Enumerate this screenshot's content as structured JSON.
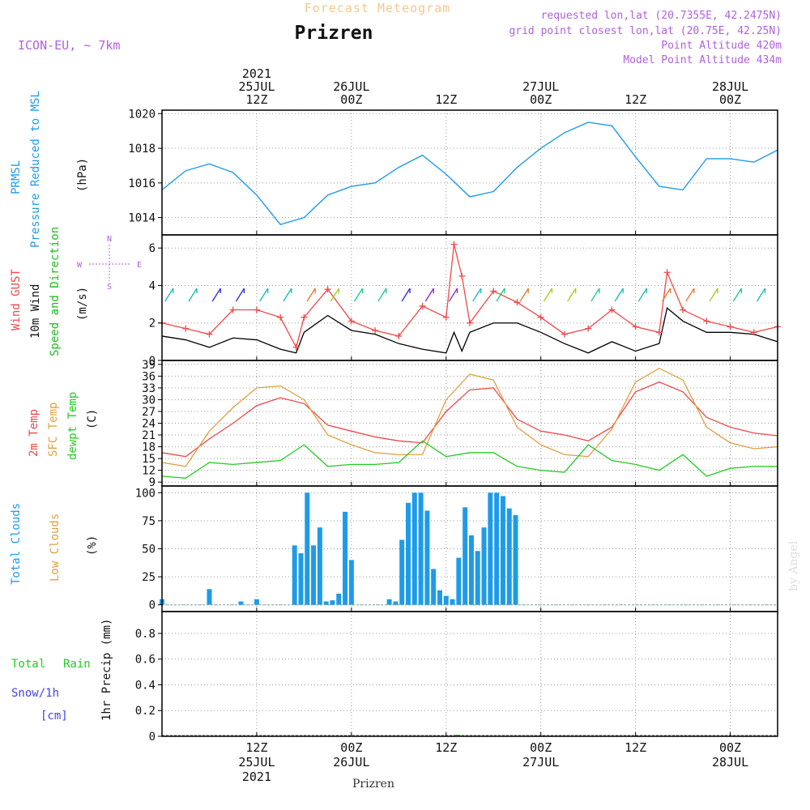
{
  "header": {
    "app_title": "Forecast Meteogram",
    "location": "Prizren",
    "model": "ICON-EU, ~ 7km",
    "requested": "requested lon,lat (20.7355E, 42.2475N)",
    "grid_point": "grid point closest lon,lat (20.75E, 42.25N)",
    "point_altitude": "Point Altitude 420m",
    "model_altitude": "Model Point Altitude 434m",
    "footer_location": "Prizren",
    "watermark": "by Angel"
  },
  "colors": {
    "pressure": "#1e9be8",
    "gust": "#f04848",
    "wind": "#000000",
    "direction": "#22bb22",
    "temp2m": "#f04848",
    "sfc": "#e0a040",
    "dewpt": "#22cc22",
    "clouds_total": "#1e9be8",
    "clouds_low": "#e0a040",
    "rain": "#22cc22",
    "snow": "#4444ee",
    "annot": "#b060e0",
    "title_top": "#f0c890"
  },
  "time_axis": {
    "ticks": [
      {
        "hour": 12,
        "top": [
          "2021",
          "25JUL",
          "12Z"
        ],
        "bottom": [
          "12Z",
          "25JUL",
          "2021"
        ]
      },
      {
        "hour": 24,
        "top": [
          "26JUL",
          "00Z"
        ],
        "bottom": [
          "00Z",
          "26JUL"
        ]
      },
      {
        "hour": 36,
        "top": [
          "12Z"
        ],
        "bottom": [
          "12Z"
        ]
      },
      {
        "hour": 48,
        "top": [
          "27JUL",
          "00Z"
        ],
        "bottom": [
          "00Z",
          "27JUL"
        ]
      },
      {
        "hour": 60,
        "top": [
          "12Z"
        ],
        "bottom": [
          "12Z"
        ]
      },
      {
        "hour": 72,
        "top": [
          "28JUL",
          "00Z"
        ],
        "bottom": [
          "00Z",
          "28JUL"
        ]
      }
    ]
  },
  "panels": {
    "pressure": {
      "labels": [
        "PRMSL",
        "Pressure Reduced to MSL"
      ],
      "unit": "(hPa)",
      "ticks": [
        "1014",
        "1016",
        "1018",
        "1020"
      ]
    },
    "wind": {
      "labels": [
        "Wind GUST",
        "10m Wind",
        "Speed and Direction"
      ],
      "unit": "(m/s)",
      "ticks": [
        "0",
        "2",
        "4",
        "6"
      ],
      "compass": {
        "n": "N",
        "s": "S",
        "w": "W",
        "e": "E"
      }
    },
    "temp": {
      "labels": [
        "2m Temp",
        "SFC Temp",
        "dewpt Temp"
      ],
      "unit": "(C)",
      "ticks": [
        "9",
        "12",
        "15",
        "18",
        "21",
        "24",
        "27",
        "30",
        "33",
        "36",
        "39"
      ]
    },
    "clouds": {
      "labels": [
        "Total Clouds",
        "Low Clouds"
      ],
      "unit": "(%)",
      "ticks": [
        "0",
        "25",
        "50",
        "75",
        "100"
      ]
    },
    "precip": {
      "labels": [
        "Total",
        "Rain",
        "Snow/1h",
        "[cm]"
      ],
      "unit": "1hr Precip (mm)",
      "ticks": [
        "0",
        "0.2",
        "0.4",
        "0.6",
        "0.8"
      ]
    }
  },
  "chart_data": [
    {
      "type": "line",
      "title": "PRMSL Pressure Reduced to MSL",
      "ylabel": "(hPa)",
      "ylim": [
        1013,
        1020.2
      ],
      "x_hours": [
        0,
        3,
        6,
        9,
        12,
        15,
        18,
        21,
        24,
        27,
        30,
        33,
        36,
        39,
        42,
        45,
        48,
        51,
        54,
        57,
        60,
        63,
        66,
        69,
        72,
        75,
        78
      ],
      "series": [
        {
          "name": "PRMSL",
          "values": [
            1015.6,
            1016.7,
            1017.1,
            1016.6,
            1015.3,
            1013.6,
            1014.0,
            1015.3,
            1015.8,
            1016.0,
            1016.9,
            1017.6,
            1016.5,
            1015.2,
            1015.5,
            1016.9,
            1018.0,
            1018.9,
            1019.5,
            1019.3,
            1017.5,
            1015.8,
            1015.6,
            1017.4,
            1017.4,
            1017.2,
            1017.9
          ]
        }
      ]
    },
    {
      "type": "line",
      "title": "Wind GUST / 10m Wind Speed and Direction",
      "ylabel": "(m/s)",
      "ylim": [
        0,
        6.7
      ],
      "x_hours": [
        0,
        3,
        6,
        9,
        12,
        15,
        17,
        18,
        21,
        24,
        27,
        30,
        33,
        36,
        37,
        38,
        39,
        42,
        45,
        48,
        51,
        54,
        57,
        60,
        63,
        64,
        66,
        69,
        72,
        75,
        78
      ],
      "series": [
        {
          "name": "Wind GUST",
          "values": [
            2.0,
            1.7,
            1.4,
            2.7,
            2.7,
            2.3,
            0.7,
            2.3,
            3.8,
            2.1,
            1.6,
            1.3,
            2.9,
            2.3,
            6.2,
            4.5,
            2.0,
            3.7,
            3.1,
            2.3,
            1.4,
            1.7,
            2.7,
            1.8,
            1.5,
            4.7,
            2.7,
            2.1,
            1.8,
            1.5,
            1.8
          ]
        },
        {
          "name": "10m Wind",
          "values": [
            1.3,
            1.1,
            0.7,
            1.2,
            1.1,
            0.6,
            0.4,
            1.5,
            2.4,
            1.6,
            1.4,
            0.9,
            0.6,
            0.4,
            1.5,
            0.5,
            1.5,
            2.0,
            2.0,
            1.5,
            0.9,
            0.4,
            1.0,
            0.5,
            0.9,
            2.8,
            2.1,
            1.5,
            1.5,
            1.4,
            1.0
          ]
        }
      ]
    },
    {
      "type": "line",
      "title": "2m Temp / SFC Temp / dewpt Temp",
      "ylabel": "(C)",
      "ylim": [
        8,
        40
      ],
      "x_hours": [
        0,
        3,
        6,
        9,
        12,
        15,
        18,
        21,
        24,
        27,
        30,
        33,
        36,
        39,
        42,
        45,
        48,
        51,
        54,
        57,
        60,
        63,
        66,
        69,
        72,
        75,
        78
      ],
      "series": [
        {
          "name": "2m Temp",
          "values": [
            16.5,
            15.5,
            20.0,
            24.0,
            28.5,
            30.5,
            29.0,
            23.5,
            22.0,
            20.5,
            19.5,
            19.0,
            27.0,
            32.5,
            33.0,
            25.0,
            22.0,
            21.0,
            19.5,
            23.0,
            32.0,
            34.5,
            32.0,
            25.5,
            23.0,
            21.5,
            20.8
          ]
        },
        {
          "name": "SFC Temp",
          "values": [
            14.0,
            13.0,
            22.0,
            28.0,
            33.0,
            33.5,
            30.0,
            21.0,
            18.5,
            16.5,
            16.0,
            16.0,
            30.0,
            36.5,
            35.0,
            23.0,
            18.5,
            16.0,
            15.5,
            22.5,
            34.5,
            38.0,
            35.0,
            23.0,
            19.0,
            17.5,
            18.0
          ]
        },
        {
          "name": "dewpt Temp",
          "values": [
            10.5,
            10.0,
            14.0,
            13.5,
            14.0,
            14.5,
            18.5,
            13.0,
            13.5,
            13.5,
            14.0,
            19.5,
            15.5,
            16.5,
            16.5,
            13.0,
            12.0,
            11.5,
            18.5,
            14.5,
            13.5,
            12.0,
            16.0,
            10.5,
            12.5,
            13.0,
            13.0
          ]
        }
      ]
    },
    {
      "type": "bar",
      "title": "Total Clouds / Low Clouds",
      "ylabel": "(%)",
      "ylim": [
        -6,
        106
      ],
      "x_hours": [
        0,
        2,
        4,
        6,
        8,
        10,
        12,
        14,
        16,
        16.8,
        17.6,
        18.4,
        19.2,
        20.0,
        20.8,
        21.6,
        22.4,
        23.2,
        24,
        26,
        28,
        28.8,
        29.6,
        30.4,
        31.2,
        32.0,
        32.8,
        33.6,
        34.4,
        35.2,
        36,
        36.8,
        37.6,
        38.4,
        39.2,
        40,
        40.8,
        41.6,
        42.4,
        43.2,
        44,
        44.8
      ],
      "series": [
        {
          "name": "Total Clouds",
          "values": [
            5,
            0,
            0,
            14,
            0,
            3,
            5,
            0,
            0,
            53,
            46,
            100,
            53,
            69,
            3,
            4,
            10,
            83,
            40,
            0,
            0,
            5,
            3,
            58,
            91,
            100,
            100,
            84,
            32,
            13,
            8,
            5,
            42,
            87,
            62,
            48,
            69,
            100,
            100,
            97,
            86,
            80
          ]
        },
        {
          "name": "Low Clouds",
          "values": [
            0,
            0,
            0,
            0,
            0,
            0,
            0,
            0,
            0,
            0,
            0,
            0,
            0,
            0,
            0,
            0,
            0,
            0,
            0,
            0,
            0,
            0,
            0,
            0,
            0,
            0,
            0,
            0,
            0,
            0,
            0,
            0,
            0,
            0,
            0,
            0,
            0,
            0,
            0,
            0,
            0,
            0
          ]
        }
      ]
    },
    {
      "type": "bar",
      "title": "1hr Precip",
      "ylabel": "1hr Precip (mm)",
      "ylim": [
        0,
        0.97
      ],
      "x_hours": [
        37.5
      ],
      "series": [
        {
          "name": "Total Rain",
          "values": [
            0.0
          ]
        },
        {
          "name": "Snow/1h",
          "values": [
            0.0
          ]
        }
      ]
    }
  ]
}
